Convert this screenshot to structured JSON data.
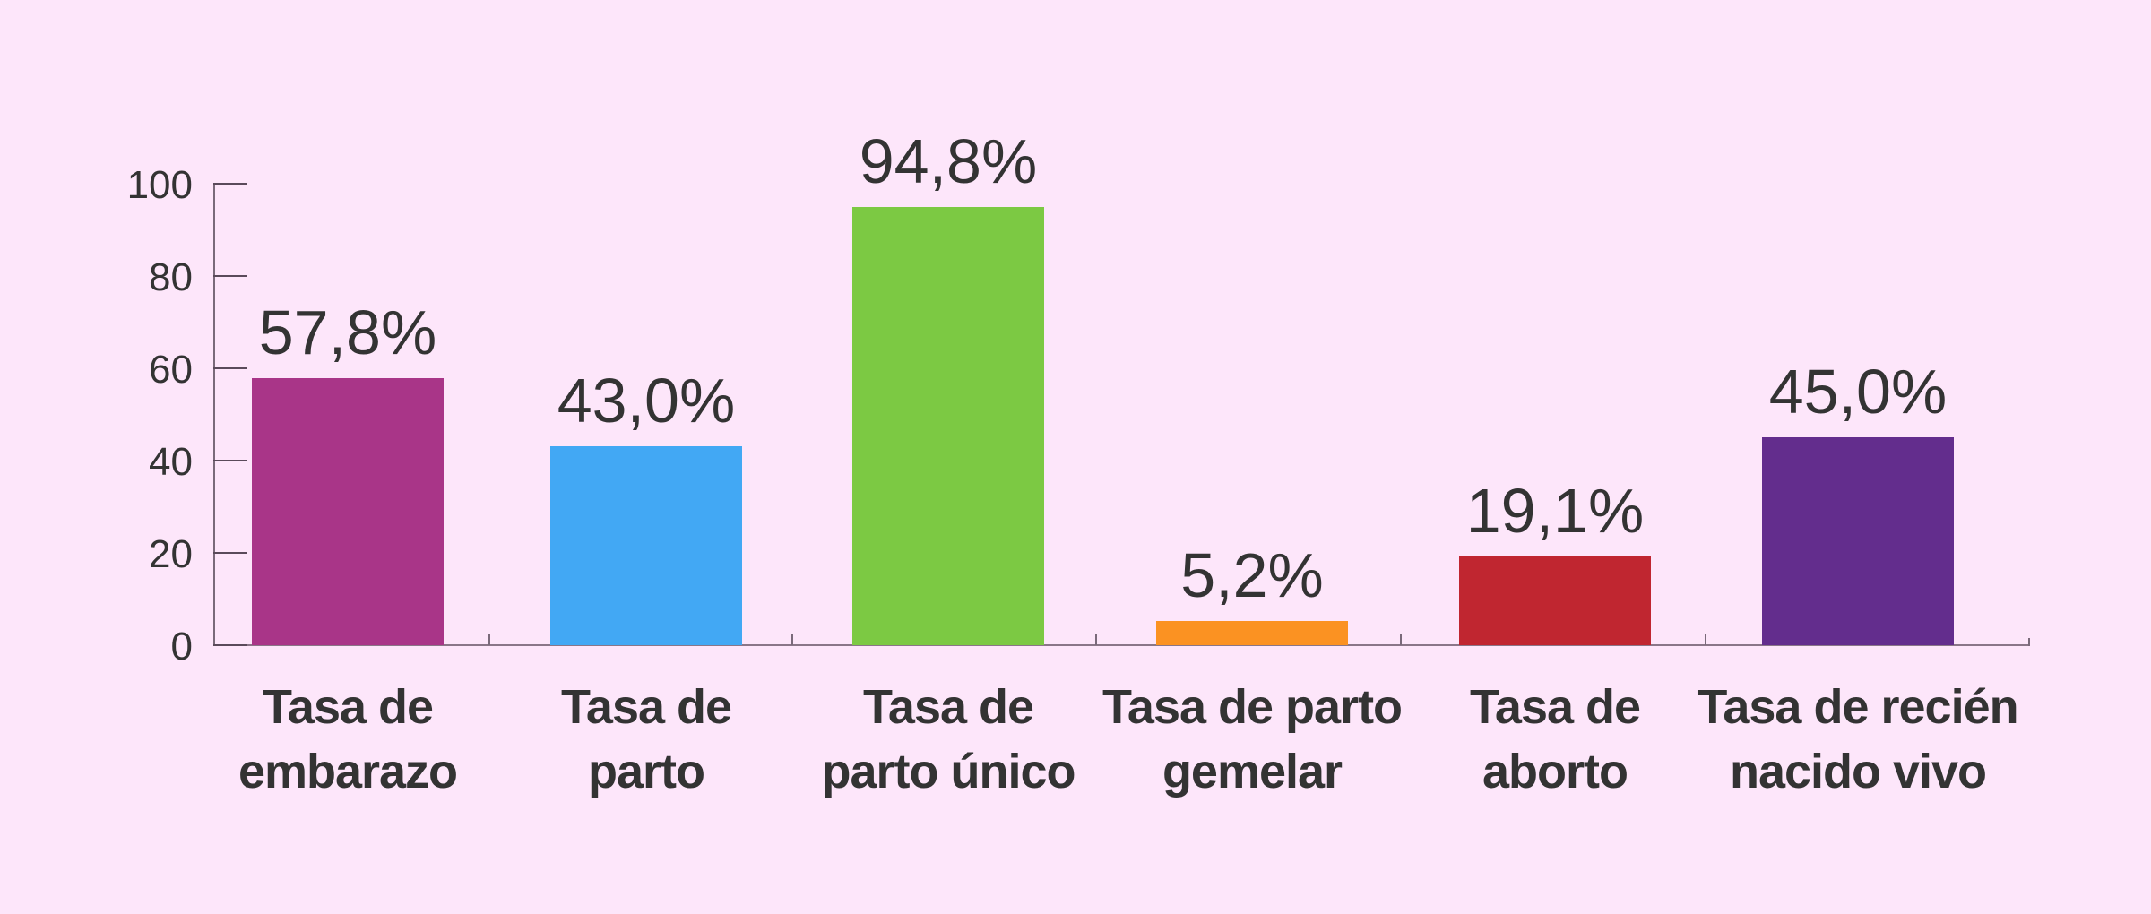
{
  "chart_data": {
    "type": "bar",
    "title": "",
    "xlabel": "",
    "ylabel": "",
    "ylim": [
      0,
      100
    ],
    "yticks": [
      0,
      20,
      40,
      60,
      80,
      100
    ],
    "grid": false,
    "legend": null,
    "categories": [
      "Tasa de embarazo",
      "Tasa de parto",
      "Tasa de parto único",
      "Tasa de parto gemelar",
      "Tasa de aborto",
      "Tasa de recién nacido vivo"
    ],
    "values": [
      57.8,
      43.0,
      94.8,
      5.2,
      19.1,
      45.0
    ],
    "value_labels": [
      "57,8%",
      "43,0%",
      "94,8%",
      "5,2%",
      "19,1%",
      "45,0%"
    ],
    "colors": [
      "#a93588",
      "#42a8f4",
      "#7cc943",
      "#fb9222",
      "#c02630",
      "#632d8d"
    ]
  },
  "axis": {
    "y_tick_labels": [
      "0",
      "20",
      "40",
      "60",
      "80",
      "100"
    ]
  },
  "labels": [
    {
      "line1": "Tasa de",
      "line2": "embarazo"
    },
    {
      "line1": "Tasa de",
      "line2": "parto"
    },
    {
      "line1": "Tasa de",
      "line2": "parto único"
    },
    {
      "line1": "Tasa de parto",
      "line2": "gemelar"
    },
    {
      "line1": "Tasa de",
      "line2": "aborto"
    },
    {
      "line1": "Tasa de recién",
      "line2": "nacido vivo"
    }
  ]
}
